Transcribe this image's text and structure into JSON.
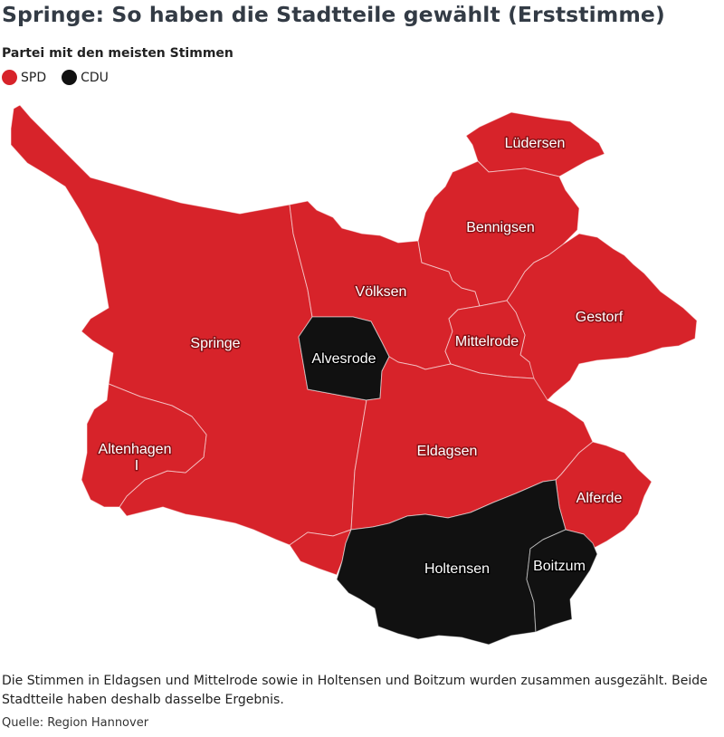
{
  "title": "Springe: So haben die Stadtteile gewählt (Erststimme)",
  "legend": {
    "title": "Partei mit den meisten Stimmen",
    "items": [
      {
        "label": "SPD",
        "color": "#d7232a"
      },
      {
        "label": "CDU",
        "color": "#111111"
      }
    ]
  },
  "districts": [
    {
      "name": "Springe",
      "winner": "SPD"
    },
    {
      "name": "Alvesrode",
      "winner": "CDU"
    },
    {
      "name": "Völksen",
      "winner": "SPD"
    },
    {
      "name": "Lüdersen",
      "winner": "SPD"
    },
    {
      "name": "Bennigsen",
      "winner": "SPD"
    },
    {
      "name": "Gestorf",
      "winner": "SPD"
    },
    {
      "name": "Mittelrode",
      "winner": "SPD"
    },
    {
      "name": "Eldagsen",
      "winner": "SPD"
    },
    {
      "name": "Altenhagen I",
      "winner": "SPD"
    },
    {
      "name": "Alferde",
      "winner": "SPD"
    },
    {
      "name": "Holtensen",
      "winner": "CDU"
    },
    {
      "name": "Boitzum",
      "winner": "CDU"
    }
  ],
  "labels": {
    "springe": "Springe",
    "alvesrode": "Alvesrode",
    "voelksen": "Völksen",
    "luedersen": "Lüdersen",
    "bennigsen": "Bennigsen",
    "gestorf": "Gestorf",
    "mittelrode": "Mittelrode",
    "eldagsen": "Eldagsen",
    "altenhagen_line1": "Altenhagen",
    "altenhagen_line2": "I",
    "alferde": "Alferde",
    "holtensen": "Holtensen",
    "boitzum": "Boitzum"
  },
  "note": "Die Stimmen in Eldagsen und Mittelrode sowie in Holtensen und Boitzum wurden zusammen ausgezählt. Beide Stadtteile haben deshalb dasselbe Ergebnis.",
  "source": "Quelle: Region Hannover"
}
